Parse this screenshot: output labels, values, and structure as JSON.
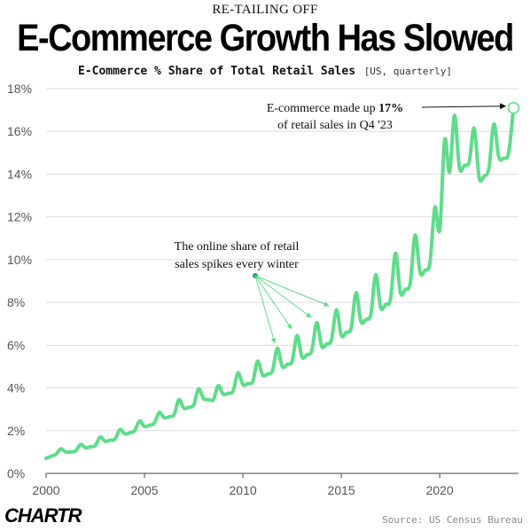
{
  "header": {
    "kicker": "RE-TAILING OFF",
    "title": "E-Commerce Growth Has Slowed",
    "subtitle": "E-Commerce % Share of Total Retail Sales",
    "subtitle_unit": "[US, quarterly]"
  },
  "footer": {
    "logo": "CHARTR",
    "source": "Source: US Census Bureau"
  },
  "colors": {
    "line": "#5fdc8a",
    "arrow": "#5fdc8a",
    "marker_fill": "#ffffff",
    "grid": "#dddddd",
    "text": "#111111"
  },
  "chart_data": {
    "type": "line",
    "xlim": [
      2000,
      2024
    ],
    "ylim": [
      0,
      18
    ],
    "x_ticks": [
      "2000",
      "2005",
      "2010",
      "2015",
      "2020"
    ],
    "y_ticks": [
      "0%",
      "2%",
      "4%",
      "6%",
      "8%",
      "10%",
      "12%",
      "14%",
      "16%",
      "18%"
    ],
    "grid": "horizontal",
    "series": [
      {
        "x": [
          2000.0,
          2000.25,
          2000.5,
          2000.75,
          2001.0,
          2001.25,
          2001.5,
          2001.75,
          2002.0,
          2002.25,
          2002.5,
          2002.75,
          2003.0,
          2003.25,
          2003.5,
          2003.75,
          2004.0,
          2004.25,
          2004.5,
          2004.75,
          2005.0,
          2005.25,
          2005.5,
          2005.75,
          2006.0,
          2006.25,
          2006.5,
          2006.75,
          2007.0,
          2007.25,
          2007.5,
          2007.75,
          2008.0,
          2008.25,
          2008.5,
          2008.75,
          2009.0,
          2009.25,
          2009.5,
          2009.75,
          2010.0,
          2010.25,
          2010.5,
          2010.75,
          2011.0,
          2011.25,
          2011.5,
          2011.75,
          2012.0,
          2012.25,
          2012.5,
          2012.75,
          2013.0,
          2013.25,
          2013.5,
          2013.75,
          2014.0,
          2014.25,
          2014.5,
          2014.75,
          2015.0,
          2015.25,
          2015.5,
          2015.75,
          2016.0,
          2016.25,
          2016.5,
          2016.75,
          2017.0,
          2017.25,
          2017.5,
          2017.75,
          2018.0,
          2018.25,
          2018.5,
          2018.75,
          2019.0,
          2019.25,
          2019.5,
          2019.75,
          2020.0,
          2020.25,
          2020.5,
          2020.75,
          2021.0,
          2021.25,
          2021.5,
          2021.75,
          2022.0,
          2022.25,
          2022.5,
          2022.75,
          2023.0,
          2023.25,
          2023.5,
          2023.75
        ],
        "y": [
          0.7,
          0.8,
          0.9,
          1.15,
          1.0,
          1.0,
          1.05,
          1.35,
          1.2,
          1.25,
          1.3,
          1.7,
          1.5,
          1.55,
          1.6,
          2.05,
          1.85,
          1.9,
          2.0,
          2.45,
          2.2,
          2.25,
          2.35,
          2.85,
          2.6,
          2.65,
          2.75,
          3.45,
          3.05,
          3.1,
          3.2,
          3.95,
          3.5,
          3.45,
          3.45,
          4.1,
          3.7,
          3.75,
          3.85,
          4.7,
          4.15,
          4.2,
          4.3,
          5.25,
          4.6,
          4.65,
          4.8,
          5.85,
          5.0,
          5.1,
          5.25,
          6.45,
          5.45,
          5.55,
          5.75,
          7.05,
          5.95,
          6.05,
          6.25,
          7.65,
          6.45,
          6.6,
          6.8,
          8.45,
          7.1,
          7.2,
          7.45,
          9.3,
          7.75,
          7.9,
          8.15,
          10.3,
          8.45,
          8.6,
          8.9,
          11.15,
          9.4,
          9.5,
          9.85,
          12.45,
          11.4,
          15.6,
          14.1,
          16.75,
          14.3,
          14.4,
          14.6,
          16.15,
          13.85,
          13.9,
          14.3,
          16.35,
          14.8,
          14.75,
          15.0,
          17.1
        ]
      }
    ],
    "annotations": [
      {
        "lines": [
          "E-commerce made up 17%",
          "of retail sales in Q4 '23"
        ],
        "bold": "17%"
      },
      {
        "lines": [
          "The online share of retail",
          "sales spikes every winter"
        ]
      }
    ]
  }
}
